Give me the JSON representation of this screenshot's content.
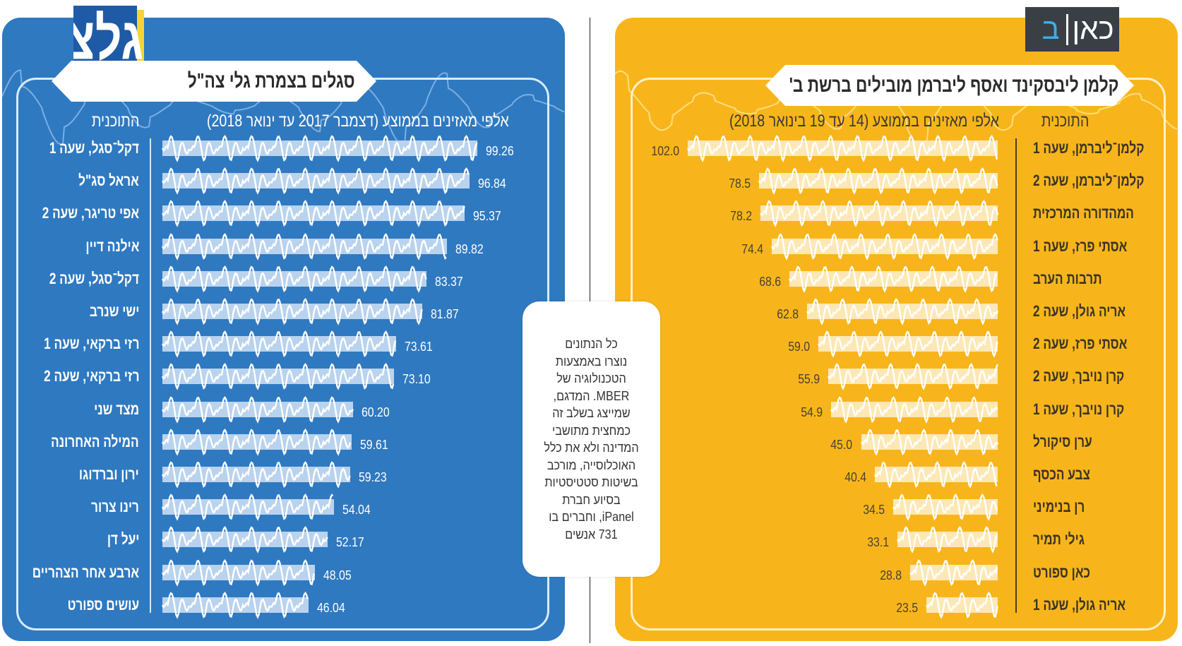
{
  "colors": {
    "galatz_panel": "#2f79c1",
    "kan_panel": "#f8b51b",
    "galatz_bar": "#b9d3ee",
    "kan_bar": "#fde8b5",
    "galatz_logo_blue": "#1f5aa6",
    "galatz_logo_yellow": "#f5d630",
    "kan_logo_bg": "#3a3f46",
    "kan_logo_accent": "#3aaee8"
  },
  "logos": {
    "galatz": "גלצ",
    "kan": "כאן",
    "kan_channel": "ב"
  },
  "note": {
    "lines": [
      "כל הנתונים",
      "נוצרו באמצעות",
      "הטכנולוגיה של",
      "MBER. המדגם,",
      "שמייצג בשלב זה",
      "כמחצית מתושבי",
      "המדינה ולא את כלל",
      "האוכלוסייה, מורכב",
      "בשיטות סטטיסטיות",
      "בסיוע חברת",
      "iPanel, וחברים בו",
      "731 אנשים"
    ]
  },
  "chart_data": [
    {
      "type": "bar",
      "orientation": "horizontal",
      "title": "סגלים בצמרת גלי צה\"ל",
      "category_header": "התוכנית",
      "value_header": "אלפי מאזינים בממוצע (דצמבר 2017 עד ינואר 2018)",
      "categories": [
        "דקל־סגל, שעה 1",
        "אראל סג\"ל",
        "אפי טריגר, שעה 2",
        "אילנה דיין",
        "דקל־סגל, שעה 2",
        "ישי שנרב",
        "רזי ברקאי, שעה 1",
        "רזי ברקאי, שעה 2",
        "מצד שני",
        "המילה האחרונה",
        "ירון וברדוגו",
        "רינו צרור",
        "יעל דן",
        "ארבע אחר הצהריים",
        "עושים ספורט"
      ],
      "values": [
        99.26,
        96.84,
        95.37,
        89.82,
        83.37,
        81.87,
        73.61,
        73.1,
        60.2,
        59.61,
        59.23,
        54.04,
        52.17,
        48.05,
        46.04
      ],
      "value_labels": [
        "99.26",
        "96.84",
        "95.37",
        "89.82",
        "83.37",
        "81.87",
        "73.61",
        "73.10",
        "60.20",
        "59.61",
        "59.23",
        "54.04",
        "52.17",
        "48.05",
        "46.04"
      ],
      "xlim": [
        0,
        100
      ],
      "grid": false
    },
    {
      "type": "bar",
      "orientation": "horizontal",
      "title": "קלמן ליבסקינד ואסף ליברמן מובילים ברשת ב'",
      "category_header": "התוכנית",
      "value_header": "אלפי מאזינים בממוצע (14 עד 19 בינואר 2018)",
      "categories": [
        "קלמן־ליברמן, שעה 1",
        "קלמן־ליברמן, שעה 2",
        "המהדורה המרכזית",
        "אסתי פרז, שעה 1",
        "תרבות הערב",
        "אריה גולן, שעה 2",
        "אסתי פרז, שעה 2",
        "קרן נויבך, שעה 2",
        "קרן נויבך, שעה 1",
        "ערן סיקורל",
        "צבע הכסף",
        "רן בנימיני",
        "גילי תמיר",
        "כאן ספורט",
        "אריה גולן, שעה 1"
      ],
      "values": [
        102.0,
        78.5,
        78.2,
        74.4,
        68.6,
        62.8,
        59.0,
        55.9,
        54.9,
        45.0,
        40.4,
        34.5,
        33.1,
        28.8,
        23.5
      ],
      "value_labels": [
        "102.0",
        "78.5",
        "78.2",
        "74.4",
        "68.6",
        "62.8",
        "59.0",
        "55.9",
        "54.9",
        "45.0",
        "40.4",
        "34.5",
        "33.1",
        "28.8",
        "23.5"
      ],
      "xlim": [
        0,
        102
      ],
      "grid": false
    }
  ]
}
